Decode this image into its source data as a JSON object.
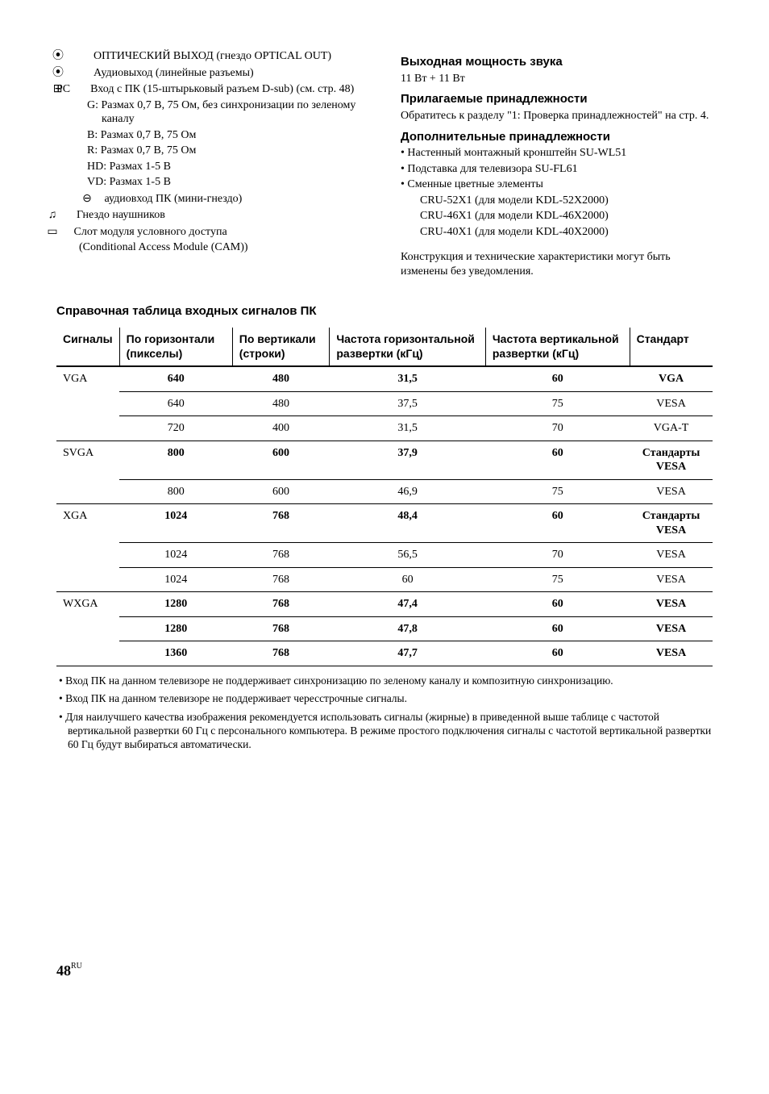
{
  "left": {
    "l1a": "ОПТИЧЕСКИЙ ВЫХОД (гнездо OPTICAL OUT)",
    "l1b": "Аудиовыход (линейные разъемы)",
    "l2a": "PC",
    "l2b": "Вход с ПК (15-штырьковый разъем D-sub) (см. стр. 48)",
    "g": "G: Размах 0,7 В, 75 Ом, без синхронизации по зеленому каналу",
    "b": "B: Размах 0,7 В, 75 Ом",
    "r": "R: Размах 0,7 В, 75 Ом",
    "hd": "HD: Размах 1-5 В",
    "vd": "VD: Размах 1-5 В",
    "ain": "аудиовход ПК (мини-гнездо)",
    "hp": "Гнездо наушников",
    "cam1": "Слот модуля условного доступа",
    "cam2": "(Conditional Access Module (CAM))"
  },
  "right": {
    "h1": "Выходная мощность звука",
    "p1": "11 Вт + 11 Вт",
    "h2": "Прилагаемые принадлежности",
    "p2a": "Обратитесь к разделу \"1: Проверка принадлежностей\" на стр. 4.",
    "h3": "Дополнительные принадлежности",
    "b1": "Настенный монтажный кронштейн SU-WL51",
    "b2": "Подставка для телевизора SU-FL61",
    "b3": "Сменные цветные элементы",
    "b3a": "CRU-52X1 (для модели KDL-52X2000)",
    "b3b": "CRU-46X1 (для модели KDL-46X2000)",
    "b3c": "CRU-40X1 (для модели KDL-40X2000)",
    "p3": "Конструкция и технические характеристики могут быть изменены без уведомления."
  },
  "tableTitle": "Справочная таблица входных сигналов ПК",
  "th": {
    "c1": "Сигналы",
    "c2": "По горизонтали (пикселы)",
    "c3": "По вертикали (строки)",
    "c4": "Частота горизонтальной развертки (кГц)",
    "c5": "Частота вертикальной развертки (кГц)",
    "c6": "Стандарт"
  },
  "rows": [
    {
      "sig": "VGA",
      "h": "640",
      "v": "480",
      "fh": "31,5",
      "fv": "60",
      "std": "VGA",
      "bold": true,
      "span": 3
    },
    {
      "sig": "",
      "h": "640",
      "v": "480",
      "fh": "37,5",
      "fv": "75",
      "std": "VESA",
      "bold": false
    },
    {
      "sig": "",
      "h": "720",
      "v": "400",
      "fh": "31,5",
      "fv": "70",
      "std": "VGA-T",
      "bold": false
    },
    {
      "sig": "SVGA",
      "h": "800",
      "v": "600",
      "fh": "37,9",
      "fv": "60",
      "std": "Стандарты VESA",
      "bold": true,
      "span": 2
    },
    {
      "sig": "",
      "h": "800",
      "v": "600",
      "fh": "46,9",
      "fv": "75",
      "std": "VESA",
      "bold": false
    },
    {
      "sig": "XGA",
      "h": "1024",
      "v": "768",
      "fh": "48,4",
      "fv": "60",
      "std": "Стандарты VESA",
      "bold": true,
      "span": 3
    },
    {
      "sig": "",
      "h": "1024",
      "v": "768",
      "fh": "56,5",
      "fv": "70",
      "std": "VESA",
      "bold": false
    },
    {
      "sig": "",
      "h": "1024",
      "v": "768",
      "fh": "60",
      "fv": "75",
      "std": "VESA",
      "bold": false
    },
    {
      "sig": "WXGA",
      "h": "1280",
      "v": "768",
      "fh": "47,4",
      "fv": "60",
      "std": "VESA",
      "bold": true,
      "span": 3
    },
    {
      "sig": "",
      "h": "1280",
      "v": "768",
      "fh": "47,8",
      "fv": "60",
      "std": "VESA",
      "bold": true
    },
    {
      "sig": "",
      "h": "1360",
      "v": "768",
      "fh": "47,7",
      "fv": "60",
      "std": "VESA",
      "bold": true
    }
  ],
  "notes": {
    "n1": "• Вход ПК на данном телевизоре не поддерживает синхронизацию по зеленому каналу и композитную синхронизацию.",
    "n2": "• Вход ПК на данном телевизоре не поддерживает чересстрочные сигналы.",
    "n3": "• Для наилучшего качества изображения рекомендуется использовать сигналы (жирные) в приведенной выше таблице с частотой вертикальной развертки 60 Гц с персонального компьютера. В режиме простого подключения сигналы с частотой вертикальной развертки 60 Гц будут выбираться автоматически."
  },
  "footer": {
    "page": "48",
    "suffix": "RU"
  }
}
